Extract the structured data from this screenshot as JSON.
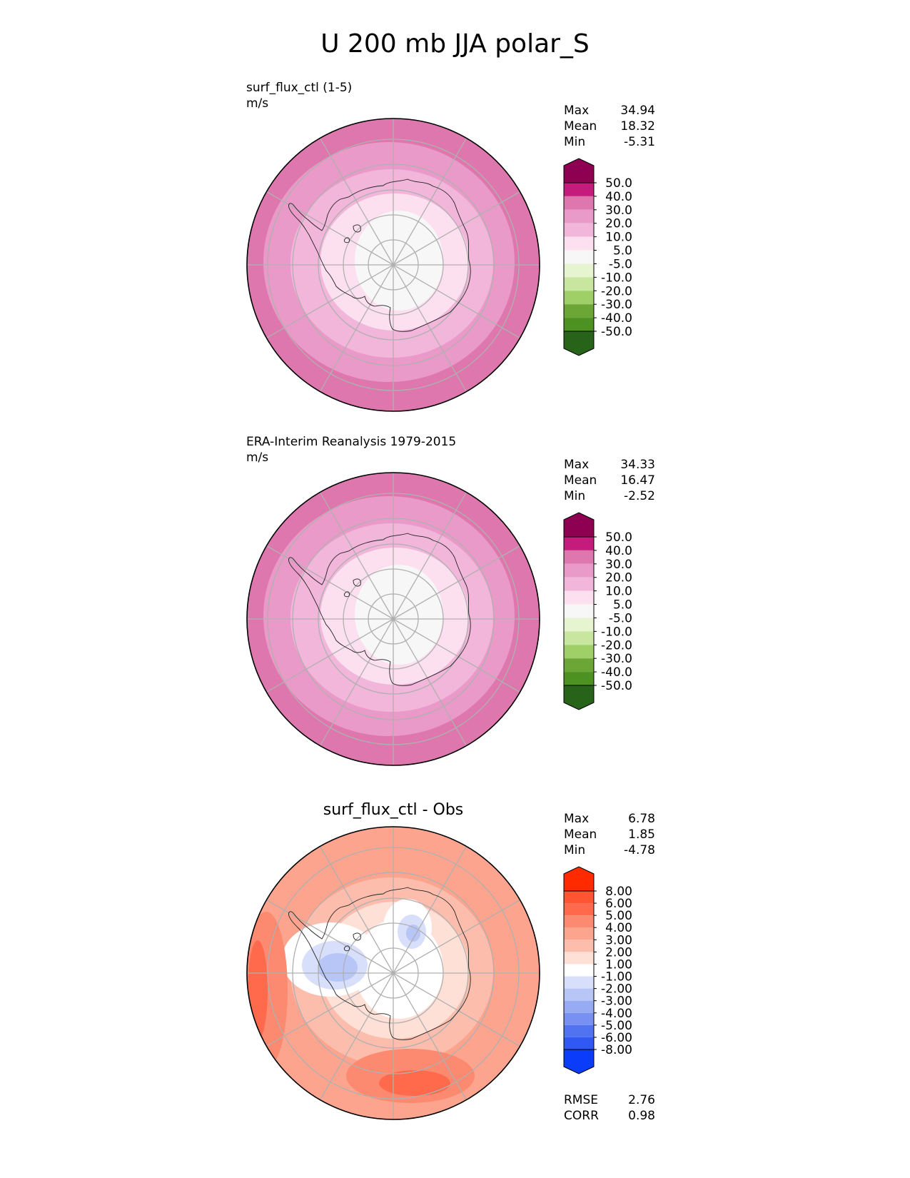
{
  "title": "U 200 mb JJA polar_S",
  "chart_data": [
    {
      "type": "heatmap",
      "projection": "south polar stereographic",
      "title": "surf_flux_ctl (1-5)",
      "units": "m/s",
      "stats": {
        "max_label": "Max",
        "max": "34.94",
        "mean_label": "Mean",
        "mean": "18.32",
        "min_label": "Min",
        "min": "-5.31"
      },
      "colorbar": {
        "levels": [
          "50.0",
          "40.0",
          "30.0",
          "20.0",
          "10.0",
          "5.0",
          "-5.0",
          "-10.0",
          "-20.0",
          "-30.0",
          "-40.0",
          "-50.0"
        ],
        "colors": [
          "#8e0152",
          "#c51b7d",
          "#de77ae",
          "#e99ac8",
          "#f1b6da",
          "#fde0ef",
          "#f7f7f7",
          "#e6f5d0",
          "#c8e6a0",
          "#9fd067",
          "#6ba637",
          "#4d9221",
          "#276419"
        ]
      },
      "rings": [
        {
          "value": "30.0",
          "color": "#e99ac8"
        },
        {
          "value": "20.0",
          "color": "#f1b6da"
        },
        {
          "value": "10.0",
          "color": "#fde0ef"
        },
        {
          "value": "5.0",
          "color": "#f7f7f7"
        }
      ],
      "jet_patches": [
        {
          "value": "40.0",
          "color": "#de77ae",
          "location": "south-pacific edge"
        },
        {
          "value": "40.0",
          "color": "#de77ae",
          "location": "upper-right edge"
        }
      ]
    },
    {
      "type": "heatmap",
      "projection": "south polar stereographic",
      "title": "ERA-Interim Reanalysis 1979-2015",
      "units": "m/s",
      "stats": {
        "max_label": "Max",
        "max": "34.33",
        "mean_label": "Mean",
        "mean": "16.47",
        "min_label": "Min",
        "min": "-2.52"
      },
      "colorbar": {
        "levels": [
          "50.0",
          "40.0",
          "30.0",
          "20.0",
          "10.0",
          "5.0",
          "-5.0",
          "-10.0",
          "-20.0",
          "-30.0",
          "-40.0",
          "-50.0"
        ],
        "colors": [
          "#8e0152",
          "#c51b7d",
          "#de77ae",
          "#e99ac8",
          "#f1b6da",
          "#fde0ef",
          "#f7f7f7",
          "#e6f5d0",
          "#c8e6a0",
          "#9fd067",
          "#6ba637",
          "#4d9221",
          "#276419"
        ]
      },
      "rings": [
        {
          "value": "30.0",
          "color": "#e99ac8"
        },
        {
          "value": "20.0",
          "color": "#f1b6da"
        },
        {
          "value": "10.0",
          "color": "#fde0ef"
        },
        {
          "value": "5.0",
          "color": "#f7f7f7"
        }
      ],
      "jet_patches": [
        {
          "value": "40.0",
          "color": "#de77ae",
          "location": "upper-right edge"
        }
      ]
    },
    {
      "type": "heatmap",
      "projection": "south polar stereographic",
      "title": "surf_flux_ctl - Obs",
      "stats": {
        "max_label": "Max",
        "max": "6.78",
        "mean_label": "Mean",
        "mean": "1.85",
        "min_label": "Min",
        "min": "-4.78"
      },
      "metrics": {
        "rmse_label": "RMSE",
        "rmse": "2.76",
        "corr_label": "CORR",
        "corr": "0.98"
      },
      "colorbar": {
        "levels": [
          "8.00",
          "6.00",
          "5.00",
          "4.00",
          "3.00",
          "2.00",
          "1.00",
          "-1.00",
          "-2.00",
          "-3.00",
          "-4.00",
          "-5.00",
          "-6.00",
          "-8.00"
        ],
        "colors": [
          "#ff2a00",
          "#ff5533",
          "#ff6a4d",
          "#fb8a70",
          "#fca48e",
          "#fdbdad",
          "#fee0d6",
          "#ffffff",
          "#d7dffb",
          "#b7c5f7",
          "#97abf4",
          "#7790f2",
          "#5273f1",
          "#2f58f5",
          "#0a3cfa"
        ]
      },
      "rings": [
        {
          "value": "3.00",
          "color": "#fca48e"
        },
        {
          "value": "2.00",
          "color": "#fdbdad"
        },
        {
          "value": "1.00",
          "color": "#fee0d6"
        },
        {
          "value": "-1.00",
          "color": "#ffffff"
        }
      ]
    }
  ]
}
